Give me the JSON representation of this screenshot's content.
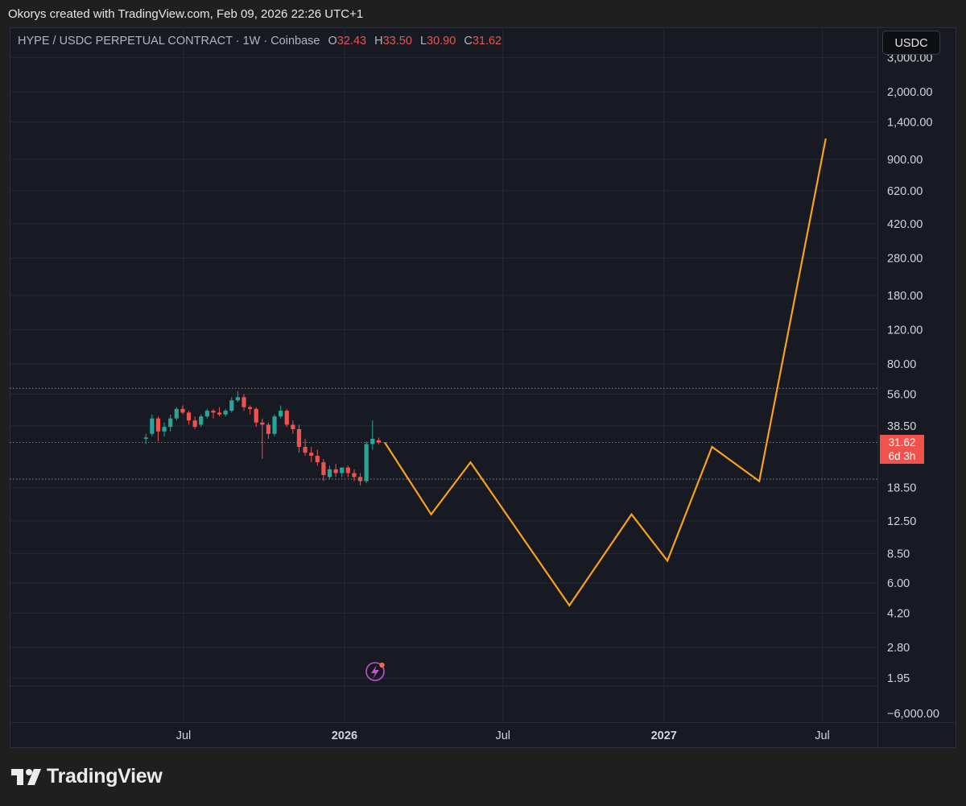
{
  "caption": "Okorys created with TradingView.com, Feb 09, 2026 22:26 UTC+1",
  "legend": {
    "symbol": "HYPE / USDC PERPETUAL CONTRACT · 1W · Coinbase",
    "o_label": "O",
    "o_value": "32.43",
    "h_label": "H",
    "h_value": "33.50",
    "l_label": "L",
    "l_value": "30.90",
    "c_label": "C",
    "c_value": "31.62"
  },
  "currency_button": "USDC",
  "last_price": {
    "value": "31.62",
    "countdown": "6d 3h"
  },
  "brand": "TradingView",
  "colors": {
    "up": "#26a69a",
    "down": "#ef5350",
    "projection": "#f7a21b",
    "last_price": "#f0524d"
  },
  "chart_data": {
    "type": "candlestick",
    "y_scale": "log",
    "y_ticks": [
      "3,000.00",
      "2,000.00",
      "1,400.00",
      "900.00",
      "620.00",
      "420.00",
      "280.00",
      "180.00",
      "120.00",
      "80.00",
      "56.00",
      "38.50",
      "18.50",
      "12.50",
      "8.50",
      "6.00",
      "4.20",
      "2.80",
      "1.95",
      "−6,000.00"
    ],
    "x_ticks": [
      {
        "label": "Jul",
        "date": "2025-07-01",
        "bold": false
      },
      {
        "label": "2026",
        "date": "2026-01-01",
        "bold": true
      },
      {
        "label": "Jul",
        "date": "2026-07-01",
        "bold": false
      },
      {
        "label": "2027",
        "date": "2027-01-01",
        "bold": true
      },
      {
        "label": "Jul",
        "date": "2027-07-01",
        "bold": false
      }
    ],
    "candles": [
      {
        "date": "2025-05-19",
        "o": 33.0,
        "h": 35.0,
        "l": 31.0,
        "c": 33.5
      },
      {
        "date": "2025-05-26",
        "o": 35.0,
        "h": 44.0,
        "l": 34.0,
        "c": 42.0
      },
      {
        "date": "2025-06-02",
        "o": 42.0,
        "h": 43.0,
        "l": 32.0,
        "c": 36.0
      },
      {
        "date": "2025-06-09",
        "o": 36.0,
        "h": 40.0,
        "l": 34.0,
        "c": 38.0
      },
      {
        "date": "2025-06-16",
        "o": 38.0,
        "h": 44.0,
        "l": 36.0,
        "c": 42.0
      },
      {
        "date": "2025-06-23",
        "o": 42.0,
        "h": 48.0,
        "l": 41.0,
        "c": 47.0
      },
      {
        "date": "2025-06-30",
        "o": 47.0,
        "h": 49.0,
        "l": 44.0,
        "c": 45.0
      },
      {
        "date": "2025-07-07",
        "o": 45.0,
        "h": 46.0,
        "l": 39.0,
        "c": 41.0
      },
      {
        "date": "2025-07-14",
        "o": 41.0,
        "h": 43.0,
        "l": 37.0,
        "c": 38.0
      },
      {
        "date": "2025-07-21",
        "o": 39.0,
        "h": 44.0,
        "l": 38.0,
        "c": 43.0
      },
      {
        "date": "2025-07-28",
        "o": 43.0,
        "h": 47.0,
        "l": 42.0,
        "c": 46.0
      },
      {
        "date": "2025-08-04",
        "o": 46.0,
        "h": 47.0,
        "l": 42.0,
        "c": 45.0
      },
      {
        "date": "2025-08-11",
        "o": 45.0,
        "h": 48.0,
        "l": 43.0,
        "c": 44.0
      },
      {
        "date": "2025-08-18",
        "o": 44.0,
        "h": 47.0,
        "l": 43.0,
        "c": 46.0
      },
      {
        "date": "2025-08-25",
        "o": 46.0,
        "h": 54.0,
        "l": 45.0,
        "c": 52.0
      },
      {
        "date": "2025-09-01",
        "o": 52.0,
        "h": 58.0,
        "l": 51.0,
        "c": 54.0
      },
      {
        "date": "2025-09-08",
        "o": 54.0,
        "h": 56.0,
        "l": 46.0,
        "c": 48.0
      },
      {
        "date": "2025-09-15",
        "o": 48.0,
        "h": 49.0,
        "l": 44.0,
        "c": 47.0
      },
      {
        "date": "2025-09-22",
        "o": 47.0,
        "h": 48.0,
        "l": 38.0,
        "c": 40.0
      },
      {
        "date": "2025-09-29",
        "o": 40.0,
        "h": 42.0,
        "l": 26.0,
        "c": 39.0
      },
      {
        "date": "2025-10-06",
        "o": 39.0,
        "h": 40.0,
        "l": 33.0,
        "c": 35.0
      },
      {
        "date": "2025-10-13",
        "o": 35.0,
        "h": 44.0,
        "l": 34.0,
        "c": 43.0
      },
      {
        "date": "2025-10-20",
        "o": 43.0,
        "h": 49.0,
        "l": 42.0,
        "c": 46.0
      },
      {
        "date": "2025-10-27",
        "o": 46.0,
        "h": 47.0,
        "l": 38.0,
        "c": 39.0
      },
      {
        "date": "2025-11-03",
        "o": 39.0,
        "h": 41.0,
        "l": 35.0,
        "c": 37.0
      },
      {
        "date": "2025-11-10",
        "o": 37.0,
        "h": 39.0,
        "l": 28.0,
        "c": 30.0
      },
      {
        "date": "2025-11-17",
        "o": 30.0,
        "h": 33.0,
        "l": 27.0,
        "c": 28.0
      },
      {
        "date": "2025-11-24",
        "o": 28.0,
        "h": 30.0,
        "l": 25.0,
        "c": 27.0
      },
      {
        "date": "2025-12-01",
        "o": 27.0,
        "h": 29.0,
        "l": 24.0,
        "c": 25.0
      },
      {
        "date": "2025-12-08",
        "o": 25.0,
        "h": 26.0,
        "l": 20.0,
        "c": 21.5
      },
      {
        "date": "2025-12-15",
        "o": 21.0,
        "h": 24.0,
        "l": 20.5,
        "c": 23.0
      },
      {
        "date": "2025-12-22",
        "o": 23.0,
        "h": 24.5,
        "l": 21.0,
        "c": 22.0
      },
      {
        "date": "2025-12-29",
        "o": 22.0,
        "h": 23.5,
        "l": 21.0,
        "c": 23.5
      },
      {
        "date": "2026-01-05",
        "o": 23.5,
        "h": 24.0,
        "l": 21.0,
        "c": 22.0
      },
      {
        "date": "2026-01-12",
        "o": 22.0,
        "h": 23.0,
        "l": 20.0,
        "c": 21.0
      },
      {
        "date": "2026-01-19",
        "o": 21.0,
        "h": 22.0,
        "l": 19.0,
        "c": 20.0
      },
      {
        "date": "2026-01-26",
        "o": 20.0,
        "h": 32.0,
        "l": 19.5,
        "c": 31.0
      },
      {
        "date": "2026-02-02",
        "o": 31.0,
        "h": 41.0,
        "l": 29.0,
        "c": 33.0
      },
      {
        "date": "2026-02-09",
        "o": 32.43,
        "h": 33.5,
        "l": 30.9,
        "c": 31.62
      }
    ],
    "projection": [
      {
        "date": "2026-02-16",
        "value": 31.62
      },
      {
        "date": "2026-04-10",
        "value": 13.5
      },
      {
        "date": "2026-05-25",
        "value": 25.0
      },
      {
        "date": "2026-09-15",
        "value": 4.6
      },
      {
        "date": "2026-11-25",
        "value": 13.5
      },
      {
        "date": "2027-01-05",
        "value": 7.8
      },
      {
        "date": "2027-02-25",
        "value": 30.0
      },
      {
        "date": "2027-04-20",
        "value": 20.0
      },
      {
        "date": "2027-07-05",
        "value": 1150
      }
    ],
    "horizontal_lines": [
      {
        "value": 60.0,
        "style": "dotted",
        "color": "#8a8d96"
      },
      {
        "value": 31.62,
        "style": "dotted",
        "color": "#f0524d"
      },
      {
        "value": 20.5,
        "style": "dotted",
        "color": "#8a8d96"
      }
    ]
  }
}
